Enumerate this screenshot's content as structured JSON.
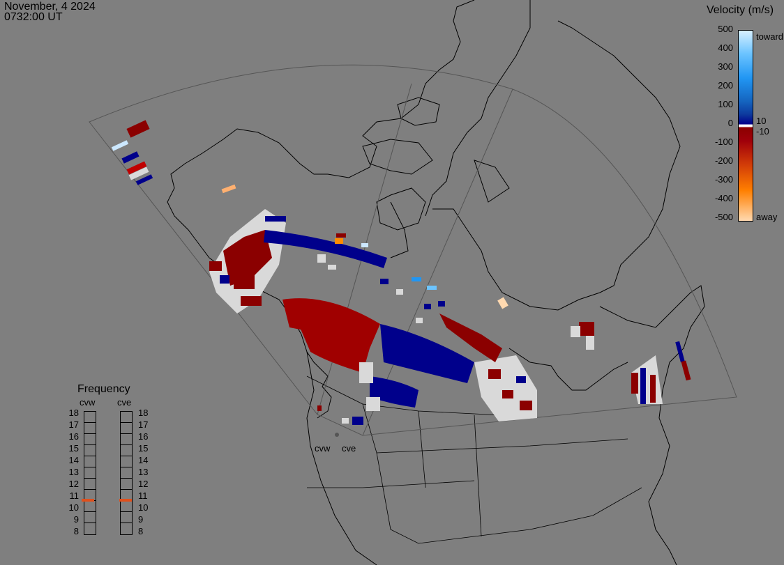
{
  "header": {
    "date": "November, 4 2024",
    "time": "0732:00 UT"
  },
  "legend": {
    "title": "Velocity (m/s)",
    "ticks": [
      "500",
      "400",
      "300",
      "200",
      "100",
      "0",
      "-100",
      "-200",
      "-300",
      "-400",
      "-500"
    ],
    "inner_ticks": [
      "10",
      "-10"
    ],
    "toward_label": "toward",
    "away_label": "away"
  },
  "frequency": {
    "title": "Frequency",
    "radars": [
      "cvw",
      "cve"
    ],
    "levels": [
      "18",
      "17",
      "16",
      "15",
      "14",
      "13",
      "12",
      "11",
      "10",
      "9",
      "8"
    ],
    "active_mhz": 11
  },
  "sites": [
    "cvw",
    "cve"
  ],
  "colors": {
    "toward": "#00008b",
    "away": "#8b0000",
    "ground": "#d9d9d9",
    "marker": "#e0501c"
  }
}
